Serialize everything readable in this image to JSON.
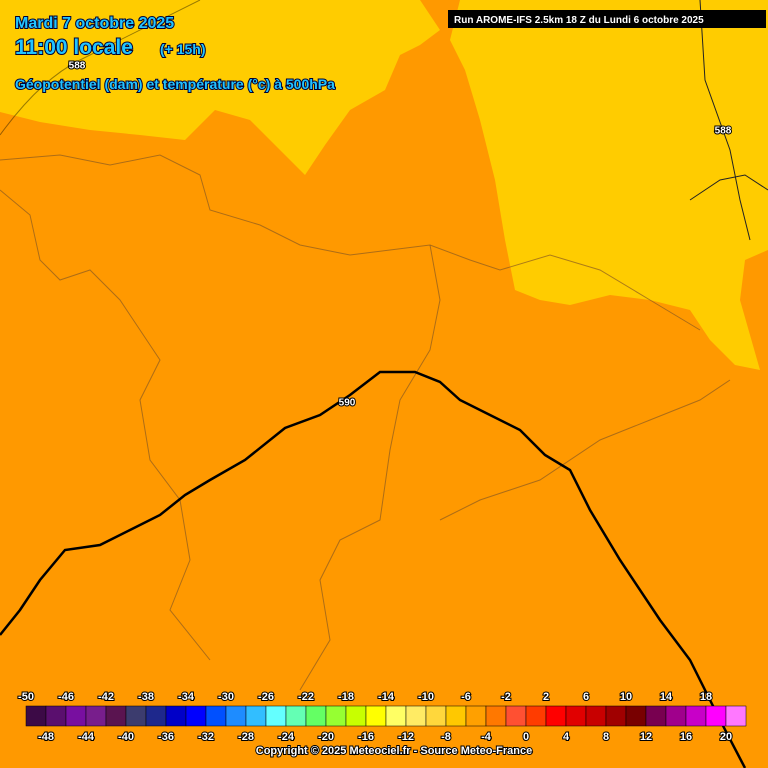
{
  "header": {
    "date": "Mardi 7 octobre 2025",
    "time": "11:00 locale",
    "lead": "(+ 15h)",
    "subtitle": "Géopotentiel (dam) et température (°c) à 500hPa",
    "run": "Run AROME-IFS 2.5km 18 Z du Lundi 6 octobre 2025"
  },
  "contour_labels": [
    "588",
    "588",
    "590"
  ],
  "legend": {
    "labels": [
      -50,
      -48,
      -46,
      -44,
      -42,
      -40,
      -38,
      -36,
      -34,
      -32,
      -30,
      -28,
      -26,
      -24,
      -22,
      -20,
      -18,
      -16,
      -14,
      -12,
      -10,
      -8,
      -6,
      -4,
      -2,
      0,
      2,
      4,
      6,
      8,
      10,
      12,
      14,
      16,
      18,
      20
    ],
    "colors": [
      "#3c0a46",
      "#5a0f6e",
      "#780fa0",
      "#781e8c",
      "#5a1450",
      "#3c3c6e",
      "#1e288c",
      "#0000c8",
      "#0000ff",
      "#0050ff",
      "#1e8cff",
      "#32beff",
      "#64ffff",
      "#64ffb4",
      "#64ff64",
      "#96ff32",
      "#c8ff00",
      "#ffff00",
      "#ffff64",
      "#ffeb64",
      "#ffd73c",
      "#ffc800",
      "#ffa000",
      "#ff7800",
      "#ff5032",
      "#ff3c00",
      "#ff0000",
      "#e10000",
      "#c80000",
      "#a00000",
      "#780000",
      "#780050",
      "#a0008c",
      "#c800c8",
      "#ff00ff",
      "#ff78ff"
    ]
  },
  "copyright": "Copyright © 2025 Meteociel.fr - Source Meteo-France"
}
